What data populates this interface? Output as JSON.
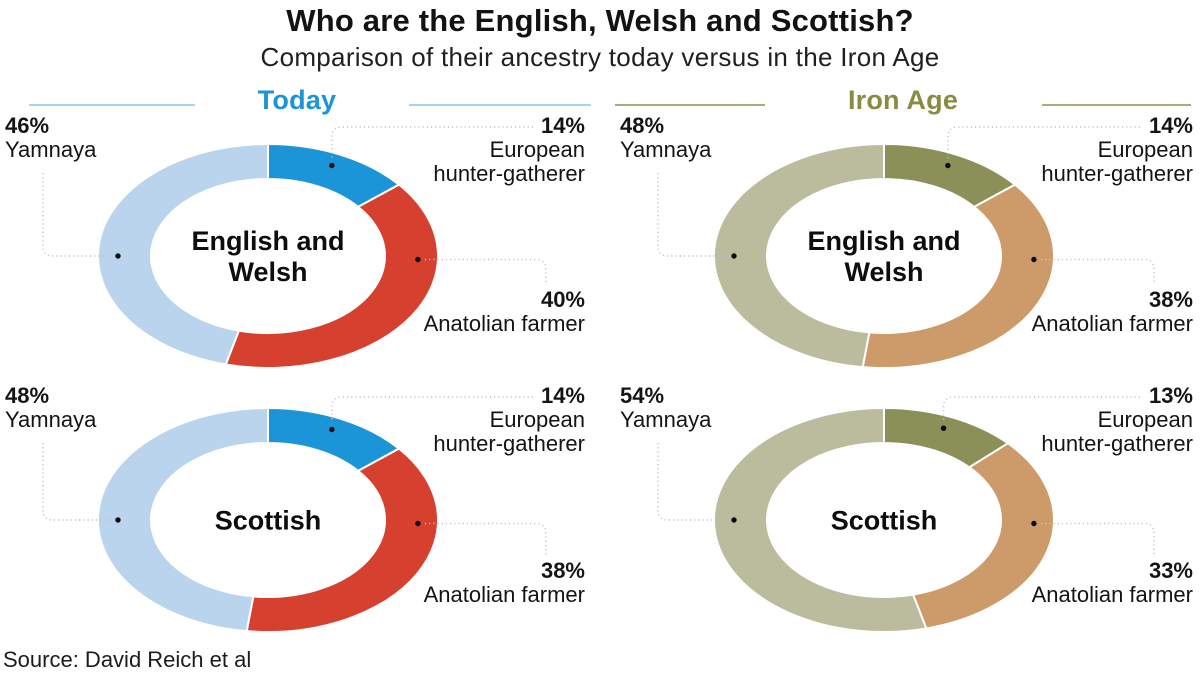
{
  "title": "Who are the English, Welsh and Scottish?",
  "subtitle": "Comparison of their ancestry today versus in the Iron Age",
  "source": "Source: David Reich et al",
  "columns": [
    {
      "label": "Today",
      "color": "#1b95d8",
      "rule_color": "#a9d2ee"
    },
    {
      "label": "Iron Age",
      "color": "#878c41",
      "rule_color": "#abab82"
    }
  ],
  "chart_data": {
    "type": "pie",
    "subtype": "donut-grid-2x2",
    "units": "percent",
    "legend_position": "callout-labels",
    "order_from_top_clockwise": [
      "european_hunter_gatherer",
      "anatolian_farmer",
      "yamnaya"
    ],
    "palette": {
      "today": {
        "yamnaya": "#b9d4ec",
        "european_hunter_gatherer": "#1b95d8",
        "anatolian_farmer": "#d6402f"
      },
      "iron_age": {
        "yamnaya": "#babc9d",
        "european_hunter_gatherer": "#8b9059",
        "anatolian_farmer": "#cd9b69"
      }
    },
    "charts": [
      {
        "group": "English and Welsh",
        "column": "Today",
        "values": {
          "yamnaya": 46,
          "european_hunter_gatherer": 14,
          "anatolian_farmer": 40
        },
        "callouts": {
          "yamnaya": {
            "pct": "46%",
            "label": "Yamnaya"
          },
          "european_hunter_gatherer": {
            "pct": "14%",
            "label_line1": "European",
            "label_line2": "hunter-gatherer"
          },
          "anatolian_farmer": {
            "pct": "40%",
            "label": "Anatolian farmer"
          }
        }
      },
      {
        "group": "English and Welsh",
        "column": "Iron Age",
        "values": {
          "yamnaya": 48,
          "european_hunter_gatherer": 14,
          "anatolian_farmer": 38
        },
        "callouts": {
          "yamnaya": {
            "pct": "48%",
            "label": "Yamnaya"
          },
          "european_hunter_gatherer": {
            "pct": "14%",
            "label_line1": "European",
            "label_line2": "hunter-gatherer"
          },
          "anatolian_farmer": {
            "pct": "38%",
            "label": "Anatolian farmer"
          }
        }
      },
      {
        "group": "Scottish",
        "column": "Today",
        "values": {
          "yamnaya": 48,
          "european_hunter_gatherer": 14,
          "anatolian_farmer": 38
        },
        "callouts": {
          "yamnaya": {
            "pct": "48%",
            "label": "Yamnaya"
          },
          "european_hunter_gatherer": {
            "pct": "14%",
            "label_line1": "European",
            "label_line2": "hunter-gatherer"
          },
          "anatolian_farmer": {
            "pct": "38%",
            "label": "Anatolian farmer"
          }
        }
      },
      {
        "group": "Scottish",
        "column": "Iron Age",
        "values": {
          "yamnaya": 54,
          "european_hunter_gatherer": 13,
          "anatolian_farmer": 33
        },
        "callouts": {
          "yamnaya": {
            "pct": "54%",
            "label": "Yamnaya"
          },
          "european_hunter_gatherer": {
            "pct": "13%",
            "label_line1": "European",
            "label_line2": "hunter-gatherer"
          },
          "anatolian_farmer": {
            "pct": "33%",
            "label": "Anatolian farmer"
          }
        }
      }
    ]
  }
}
